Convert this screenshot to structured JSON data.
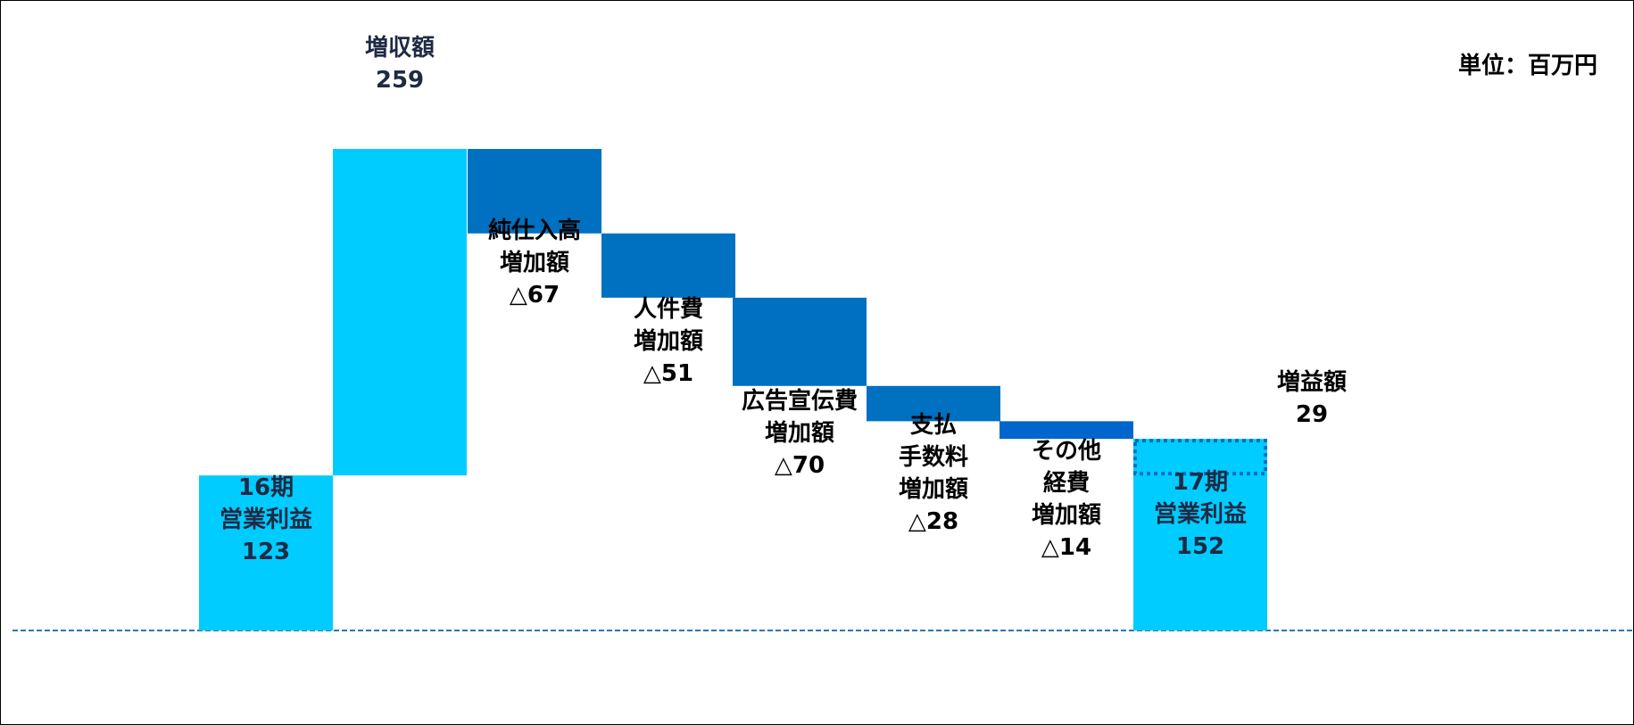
{
  "chart_data": {
    "type": "waterfall",
    "unit_label": "単位：百万円",
    "steps": [
      {
        "key": "start",
        "kind": "total",
        "value": 123,
        "lines": [
          "16期",
          "営業利益",
          "123"
        ]
      },
      {
        "key": "revenue",
        "kind": "increase",
        "value": 259,
        "lines": [
          "増収額",
          "259"
        ]
      },
      {
        "key": "purchase",
        "kind": "decrease",
        "value": -67,
        "lines": [
          "純仕入高",
          "増加額",
          "△67"
        ]
      },
      {
        "key": "personnel",
        "kind": "decrease",
        "value": -51,
        "lines": [
          "人件費",
          "増加額",
          "△51"
        ]
      },
      {
        "key": "advertising",
        "kind": "decrease",
        "value": -70,
        "lines": [
          "広告宣伝費",
          "増加額",
          "△70"
        ]
      },
      {
        "key": "fees",
        "kind": "decrease",
        "value": -28,
        "lines": [
          "支払",
          "手数料",
          "増加額",
          "△28"
        ]
      },
      {
        "key": "other",
        "kind": "decrease",
        "value": -14,
        "lines": [
          "その他",
          "経費",
          "増加額",
          "△14"
        ]
      },
      {
        "key": "end",
        "kind": "total",
        "value": 152,
        "lines": [
          "17期",
          "営業利益",
          "152"
        ]
      }
    ],
    "profit_increase": {
      "value": 29,
      "lines": [
        "増益額",
        "29"
      ]
    },
    "colors": {
      "total": "#00CCFF",
      "increase": "#00CCFF",
      "decrease": "#0070C0",
      "decrease_last": "#0066CC",
      "label_dark": "#1F2A44",
      "label_black": "#000000",
      "baseline": "#2E75B6",
      "increase_outline": "#0070C0"
    }
  }
}
